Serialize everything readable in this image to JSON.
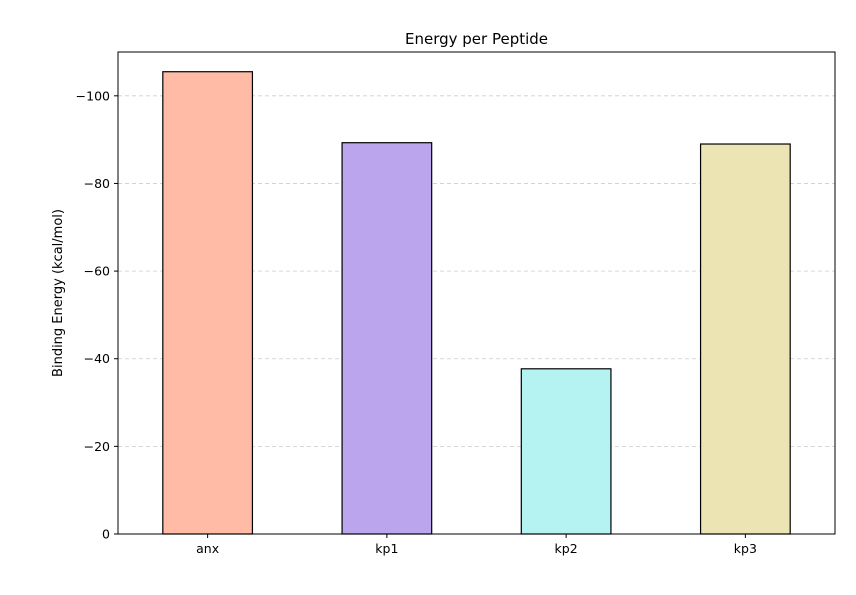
{
  "chart_data": {
    "type": "bar",
    "title": "Energy per Peptide",
    "xlabel": "",
    "ylabel": "Binding Energy (kcal/mol)",
    "categories": [
      "anx",
      "kp1",
      "kp2",
      "kp3"
    ],
    "values": [
      -105.5,
      -89.3,
      -37.7,
      -89.0
    ],
    "colors": [
      "#FFBBA5",
      "#BBA5EC",
      "#B5F2F2",
      "#EDE4B4"
    ],
    "edge_color": "#000000",
    "ylim": [
      0,
      -110
    ],
    "y_inverted": true,
    "yticks": [
      0,
      -20,
      -40,
      -60,
      -80,
      -100
    ],
    "ytick_labels": [
      "0",
      "−20",
      "−40",
      "−60",
      "−80",
      "−100"
    ],
    "grid": {
      "axis": "y",
      "style": "dashed",
      "color": "#cccccc"
    },
    "legend": "none"
  }
}
